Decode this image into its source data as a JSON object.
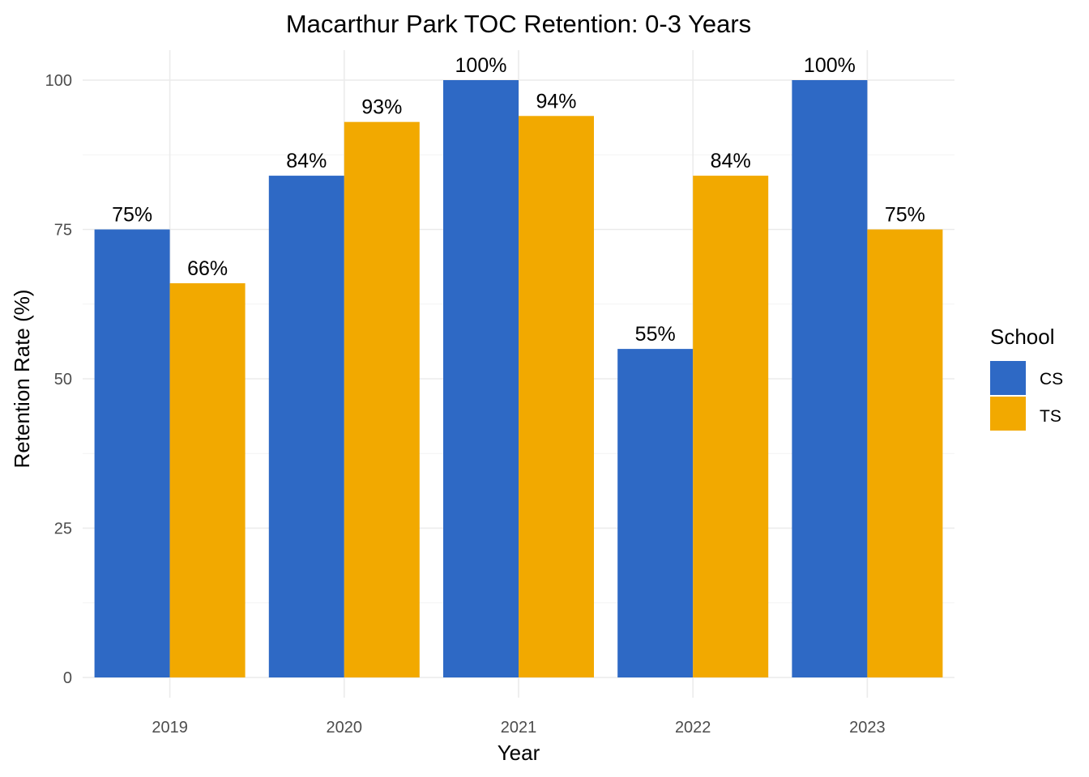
{
  "chart_data": {
    "type": "bar",
    "title": "Macarthur Park TOC Retention: 0-3 Years",
    "xlabel": "Year",
    "ylabel": "Retention Rate (%)",
    "categories": [
      "2019",
      "2020",
      "2021",
      "2022",
      "2023"
    ],
    "series": [
      {
        "name": "CS",
        "color": "#2E69C5",
        "values": [
          75,
          84,
          100,
          55,
          100
        ],
        "labels": [
          "75%",
          "84%",
          "100%",
          "55%",
          "100%"
        ]
      },
      {
        "name": "TS",
        "color": "#F2A900",
        "values": [
          66,
          93,
          94,
          84,
          75
        ],
        "labels": [
          "66%",
          "93%",
          "94%",
          "84%",
          "75%"
        ]
      }
    ],
    "ylim": [
      0,
      100
    ],
    "yticks": [
      0,
      25,
      50,
      75,
      100
    ],
    "ytick_labels": [
      "0",
      "25",
      "50",
      "75",
      "100"
    ],
    "grid": true,
    "legend": {
      "title": "School",
      "position": "right"
    }
  }
}
